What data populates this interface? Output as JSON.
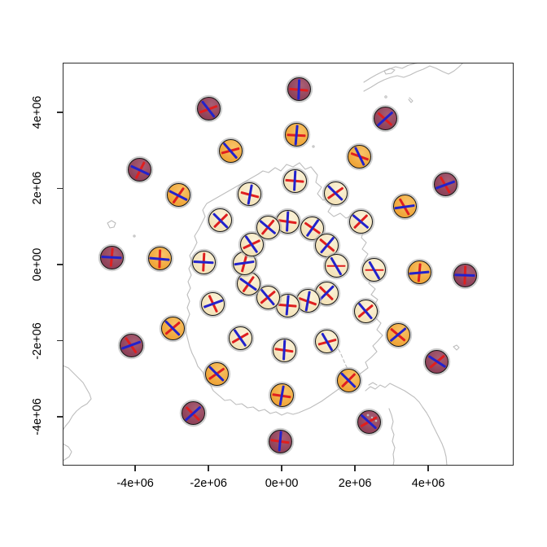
{
  "figure": {
    "title": "",
    "background": "#ffffff",
    "plot_border_color": "#2d2d2d",
    "axis_text_color": "#000000"
  },
  "colors": {
    "cream_base": "#F3E2B8",
    "cream_light": "#FBF3DA",
    "orange_base": "#EFA437",
    "orange_light": "#F8C468",
    "maroon_base": "#8E4158",
    "maroon_light": "#A85E74",
    "glyph_outline": "#151515",
    "glyph_halo": "rgba(173,173,173,0.6)",
    "blue_line": "#2222CC",
    "red_line": "#DF1F1F",
    "coastline": "#BDBDBD",
    "tick_color": "#2d2d2d"
  },
  "chart_data": {
    "type": "scatter-glyph-map",
    "title": "",
    "xlabel": "",
    "ylabel": "",
    "grid": false,
    "basemap": "antarctic-polar-stereographic-coastline",
    "units": "meters (axis values shown in scientific notation, e6 = 1e+06)",
    "xlim_e6": [
      -5.98,
      6.33
    ],
    "ylim_e6": [
      -5.28,
      5.3
    ],
    "x_ticks": [
      {
        "v": -4,
        "label": "-4e+06"
      },
      {
        "v": -2,
        "label": "-2e+06"
      },
      {
        "v": 0,
        "label": "0e+00"
      },
      {
        "v": 2,
        "label": "2e+06"
      },
      {
        "v": 4,
        "label": "4e+06"
      }
    ],
    "y_ticks": [
      {
        "v": 4,
        "label": "4e+06"
      },
      {
        "v": 2,
        "label": "2e+06"
      },
      {
        "v": 0,
        "label": "0e+00"
      },
      {
        "v": -2,
        "label": "-2e+06"
      },
      {
        "v": -4,
        "label": "-4e+06"
      }
    ],
    "glyph_description": "circle glyphs with one blue and one red axis line; fill color by ring: inner two rings cream, third ring orange, outer ring maroon",
    "glyphs": [
      {
        "x": 0.16,
        "y": 1.13,
        "fill": "cream",
        "blue_deg": 87,
        "red_deg": -8
      },
      {
        "x": 0.84,
        "y": 0.96,
        "fill": "cream",
        "blue_deg": 55,
        "red_deg": -35
      },
      {
        "x": 1.24,
        "y": 0.51,
        "fill": "cream",
        "blue_deg": 50,
        "red_deg": -40
      },
      {
        "x": 1.49,
        "y": -0.04,
        "fill": "cream",
        "blue_deg": -60,
        "red_deg": 0
      },
      {
        "x": 1.22,
        "y": -0.75,
        "fill": "cream",
        "blue_deg": 45,
        "red_deg": -45
      },
      {
        "x": 0.71,
        "y": -0.96,
        "fill": "cream",
        "blue_deg": 80,
        "red_deg": -20
      },
      {
        "x": 0.16,
        "y": -1.07,
        "fill": "cream",
        "blue_deg": 85,
        "red_deg": -5
      },
      {
        "x": -0.38,
        "y": -0.86,
        "fill": "cream",
        "blue_deg": -50,
        "red_deg": 40
      },
      {
        "x": -0.91,
        "y": -0.51,
        "fill": "cream",
        "blue_deg": -35,
        "red_deg": 55
      },
      {
        "x": -1.02,
        "y": 0.04,
        "fill": "cream",
        "blue_deg": 8,
        "red_deg": 75
      },
      {
        "x": -0.82,
        "y": 0.53,
        "fill": "cream",
        "blue_deg": -55,
        "red_deg": 25
      },
      {
        "x": -0.38,
        "y": 0.98,
        "fill": "cream",
        "blue_deg": -40,
        "red_deg": 50
      },
      {
        "x": 0.36,
        "y": 2.2,
        "fill": "cream",
        "blue_deg": 87,
        "red_deg": -5
      },
      {
        "x": 1.47,
        "y": 1.88,
        "fill": "cream",
        "blue_deg": -45,
        "red_deg": 35
      },
      {
        "x": 2.16,
        "y": 1.13,
        "fill": "cream",
        "blue_deg": -40,
        "red_deg": 45
      },
      {
        "x": 2.53,
        "y": -0.15,
        "fill": "cream",
        "blue_deg": -60,
        "red_deg": 0
      },
      {
        "x": 2.29,
        "y": -1.22,
        "fill": "cream",
        "blue_deg": -50,
        "red_deg": 40
      },
      {
        "x": 1.24,
        "y": -2.03,
        "fill": "cream",
        "blue_deg": -60,
        "red_deg": 15
      },
      {
        "x": 0.07,
        "y": -2.25,
        "fill": "cream",
        "blue_deg": 87,
        "red_deg": -8
      },
      {
        "x": -1.13,
        "y": -1.93,
        "fill": "cream",
        "blue_deg": -55,
        "red_deg": 30
      },
      {
        "x": -1.87,
        "y": -1.03,
        "fill": "cream",
        "blue_deg": 20,
        "red_deg": -65
      },
      {
        "x": -2.13,
        "y": 0.06,
        "fill": "cream",
        "blue_deg": -3,
        "red_deg": 87
      },
      {
        "x": -1.67,
        "y": 1.16,
        "fill": "cream",
        "blue_deg": -45,
        "red_deg": 45
      },
      {
        "x": -0.87,
        "y": 1.84,
        "fill": "cream",
        "blue_deg": 80,
        "red_deg": -15
      },
      {
        "x": 0.4,
        "y": 3.4,
        "fill": "orange",
        "blue_deg": 85,
        "red_deg": -3
      },
      {
        "x": 2.13,
        "y": 2.84,
        "fill": "orange",
        "blue_deg": -64,
        "red_deg": -20
      },
      {
        "x": 3.36,
        "y": 1.52,
        "fill": "orange",
        "blue_deg": 8,
        "red_deg": -60
      },
      {
        "x": 3.76,
        "y": -0.21,
        "fill": "orange",
        "blue_deg": 5,
        "red_deg": 85
      },
      {
        "x": 3.18,
        "y": -1.84,
        "fill": "orange",
        "blue_deg": 40,
        "red_deg": -40
      },
      {
        "x": 1.82,
        "y": -3.04,
        "fill": "orange",
        "blue_deg": -45,
        "red_deg": 45
      },
      {
        "x": 0.0,
        "y": -3.44,
        "fill": "orange",
        "blue_deg": 80,
        "red_deg": -8
      },
      {
        "x": -1.78,
        "y": -2.87,
        "fill": "orange",
        "blue_deg": -45,
        "red_deg": 35
      },
      {
        "x": -2.98,
        "y": -1.67,
        "fill": "orange",
        "blue_deg": -45,
        "red_deg": 40
      },
      {
        "x": -3.33,
        "y": 0.15,
        "fill": "orange",
        "blue_deg": -5,
        "red_deg": 88
      },
      {
        "x": -2.82,
        "y": 1.82,
        "fill": "orange",
        "blue_deg": -27,
        "red_deg": 55
      },
      {
        "x": -1.4,
        "y": 2.99,
        "fill": "orange",
        "blue_deg": -49,
        "red_deg": 15
      },
      {
        "x": 0.47,
        "y": 4.6,
        "fill": "maroon",
        "blue_deg": 88,
        "red_deg": -5
      },
      {
        "x": 2.82,
        "y": 3.83,
        "fill": "maroon",
        "blue_deg": 42,
        "red_deg": -42
      },
      {
        "x": 4.47,
        "y": 2.1,
        "fill": "maroon",
        "blue_deg": 20,
        "red_deg": -60
      },
      {
        "x": 5.0,
        "y": -0.28,
        "fill": "maroon",
        "blue_deg": -2,
        "red_deg": 88
      },
      {
        "x": 4.24,
        "y": -2.55,
        "fill": "maroon",
        "blue_deg": -33,
        "red_deg": 40
      },
      {
        "x": 2.38,
        "y": -4.13,
        "fill": "maroon",
        "blue_deg": -42,
        "red_deg": 30
      },
      {
        "x": -0.04,
        "y": -4.64,
        "fill": "maroon",
        "blue_deg": 85,
        "red_deg": -8
      },
      {
        "x": -2.42,
        "y": -3.91,
        "fill": "maroon",
        "blue_deg": 42,
        "red_deg": -45
      },
      {
        "x": -4.11,
        "y": -2.12,
        "fill": "maroon",
        "blue_deg": 20,
        "red_deg": -55
      },
      {
        "x": -4.64,
        "y": 0.19,
        "fill": "maroon",
        "blue_deg": -3,
        "red_deg": 85
      },
      {
        "x": -3.87,
        "y": 2.48,
        "fill": "maroon",
        "blue_deg": -25,
        "red_deg": 63
      },
      {
        "x": -2.0,
        "y": 4.09,
        "fill": "maroon",
        "blue_deg": -52,
        "red_deg": 20
      }
    ]
  }
}
